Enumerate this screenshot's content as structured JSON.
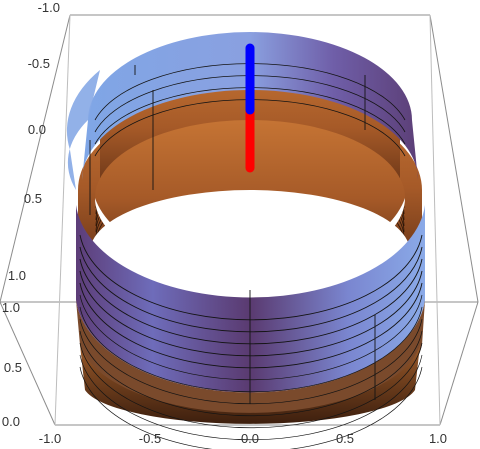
{
  "plot": {
    "type": "3d-surface",
    "surface": "cylinder x^2 + y^2 = 1",
    "box_color": "#8c8c8c",
    "colors": {
      "outer_light": "#7ea4e3",
      "outer_mid": "#6d6fbf",
      "outer_dark": "#5b3766",
      "inner": "#b8662f",
      "inner_dark": "#5a2c14",
      "mesh": "#1a1a1a"
    }
  },
  "vector": {
    "upper_color": "#0000ff",
    "lower_color": "#ff0000"
  },
  "axes": {
    "back_left_ticks": [
      "-1.0",
      "-0.5",
      "0.0",
      "0.5",
      "1.0"
    ],
    "front_left_ticks": [
      "1.0",
      "0.5",
      "0.0"
    ],
    "bottom_ticks": [
      "-1.0",
      "-0.5",
      "0.0",
      "0.5",
      "1.0"
    ]
  }
}
